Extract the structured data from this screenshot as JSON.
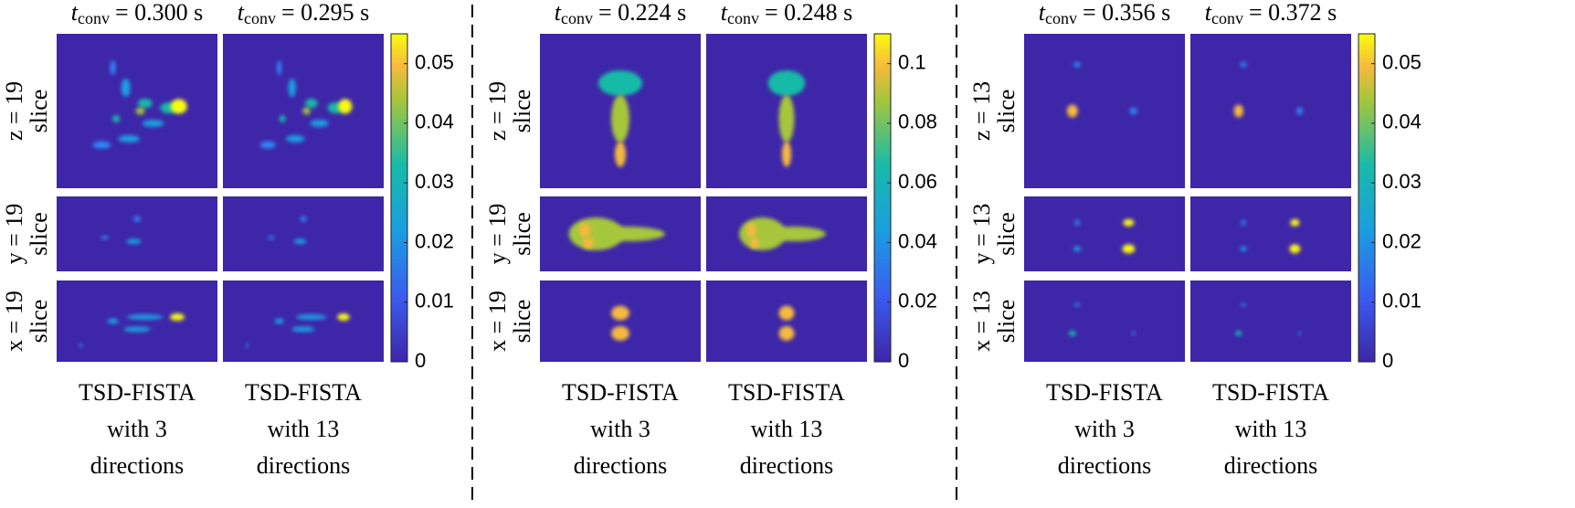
{
  "time_symbol": "t",
  "time_subscript": "conv",
  "groups": [
    {
      "columns": [
        {
          "time": "= 0.300 s",
          "caption": [
            "TSD-FISTA",
            "with 3",
            "directions"
          ]
        },
        {
          "time": "= 0.295 s",
          "caption": [
            "TSD-FISTA",
            "with 13",
            "directions"
          ]
        }
      ],
      "rows": [
        {
          "axis": "z = 19",
          "word": "slice"
        },
        {
          "axis": "y = 19",
          "word": "slice"
        },
        {
          "axis": "x = 19",
          "word": "slice"
        }
      ],
      "colorbar": {
        "lim": [
          0,
          0.055
        ],
        "ticks": [
          0,
          0.01,
          0.02,
          0.03,
          0.04,
          0.05
        ]
      }
    },
    {
      "columns": [
        {
          "time": "= 0.224 s",
          "caption": [
            "TSD-FISTA",
            "with 3",
            "directions"
          ]
        },
        {
          "time": "= 0.248 s",
          "caption": [
            "TSD-FISTA",
            "with 13",
            "directions"
          ]
        }
      ],
      "rows": [
        {
          "axis": "z = 19",
          "word": "slice"
        },
        {
          "axis": "y = 19",
          "word": "slice"
        },
        {
          "axis": "x = 19",
          "word": "slice"
        }
      ],
      "colorbar": {
        "lim": [
          0,
          0.11
        ],
        "ticks": [
          0,
          0.02,
          0.04,
          0.06,
          0.08,
          0.1
        ]
      }
    },
    {
      "columns": [
        {
          "time": "= 0.356 s",
          "caption": [
            "TSD-FISTA",
            "with 3",
            "directions"
          ]
        },
        {
          "time": "= 0.372 s",
          "caption": [
            "TSD-FISTA",
            "with 13",
            "directions"
          ]
        }
      ],
      "rows": [
        {
          "axis": "z = 13",
          "word": "slice"
        },
        {
          "axis": "y = 13",
          "word": "slice"
        },
        {
          "axis": "x = 13",
          "word": "slice"
        }
      ],
      "colorbar": {
        "lim": [
          0,
          0.055
        ],
        "ticks": [
          0,
          0.01,
          0.02,
          0.03,
          0.04,
          0.05
        ]
      }
    }
  ]
}
